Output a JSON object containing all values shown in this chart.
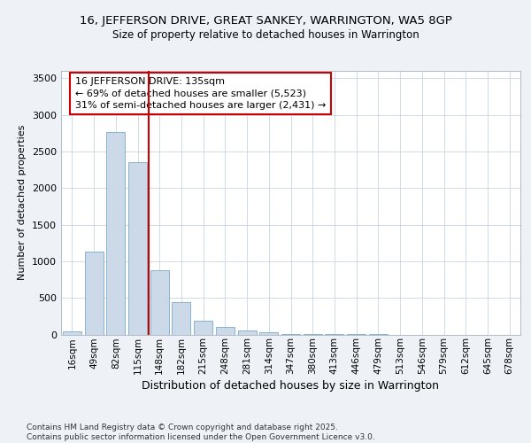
{
  "title_line1": "16, JEFFERSON DRIVE, GREAT SANKEY, WARRINGTON, WA5 8GP",
  "title_line2": "Size of property relative to detached houses in Warrington",
  "xlabel": "Distribution of detached houses by size in Warrington",
  "ylabel": "Number of detached properties",
  "categories": [
    "16sqm",
    "49sqm",
    "82sqm",
    "115sqm",
    "148sqm",
    "182sqm",
    "215sqm",
    "248sqm",
    "281sqm",
    "314sqm",
    "347sqm",
    "380sqm",
    "413sqm",
    "446sqm",
    "479sqm",
    "513sqm",
    "546sqm",
    "579sqm",
    "612sqm",
    "645sqm",
    "678sqm"
  ],
  "values": [
    40,
    1130,
    2760,
    2350,
    880,
    440,
    190,
    100,
    60,
    25,
    10,
    5,
    2,
    1,
    1,
    0,
    0,
    0,
    0,
    0,
    0
  ],
  "bar_color": "#ccd9e8",
  "bar_edgecolor": "#7aaac8",
  "vline_x_index": 3,
  "vline_color": "#cc0000",
  "annotation_text": "16 JEFFERSON DRIVE: 135sqm\n← 69% of detached houses are smaller (5,523)\n31% of semi-detached houses are larger (2,431) →",
  "annotation_box_edgecolor": "#cc0000",
  "annotation_fontsize": 8,
  "ylim": [
    0,
    3600
  ],
  "yticks": [
    0,
    500,
    1000,
    1500,
    2000,
    2500,
    3000,
    3500
  ],
  "footer_text": "Contains HM Land Registry data © Crown copyright and database right 2025.\nContains public sector information licensed under the Open Government Licence v3.0.",
  "background_color": "#eef2f7",
  "plot_background": "#ffffff",
  "grid_color": "#c8d4e0"
}
